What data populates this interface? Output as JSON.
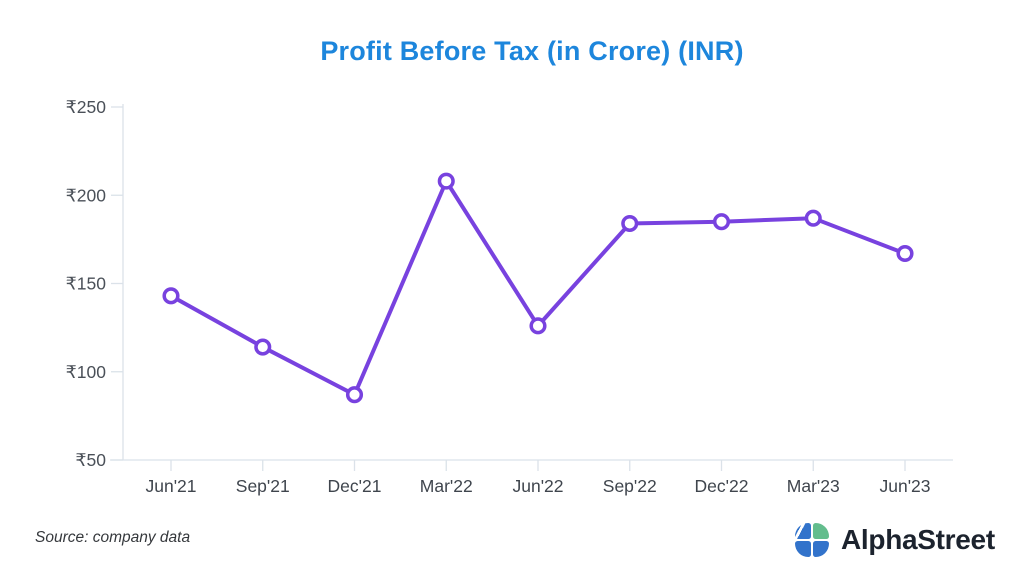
{
  "page": {
    "title": "Profit Before Tax (in Crore) (INR)",
    "source_note": "Source: company data",
    "brand": {
      "name": "AlphaStreet"
    }
  },
  "colors": {
    "title": "#1d86dc",
    "line": "#7842df",
    "marker_fill": "#ffffff",
    "axis": "#dbe2e9",
    "y_tick_label": "#4a5058",
    "x_tick_label": "#3f454d",
    "source_text": "#35383c",
    "brand_text": "#1c232e",
    "brand_blue": "#3273cb",
    "brand_green": "#63bd8d"
  },
  "chart_data": {
    "type": "line",
    "title": "Profit Before Tax (in Crore) (INR)",
    "categories": [
      "Jun'21",
      "Sep'21",
      "Dec'21",
      "Mar'22",
      "Jun'22",
      "Sep'22",
      "Dec'22",
      "Mar'23",
      "Jun'23"
    ],
    "series": [
      {
        "name": "Profit Before Tax (Crore INR)",
        "values": [
          143,
          114,
          87,
          208,
          126,
          184,
          185,
          187,
          167
        ]
      }
    ],
    "currency_prefix": "₹",
    "y_ticks": [
      50,
      100,
      150,
      200,
      250
    ],
    "ylim": [
      50,
      250
    ],
    "xlabel": "",
    "ylabel": "",
    "grid": false,
    "legend": "none",
    "line_width": 4,
    "marker": "open-circle"
  }
}
